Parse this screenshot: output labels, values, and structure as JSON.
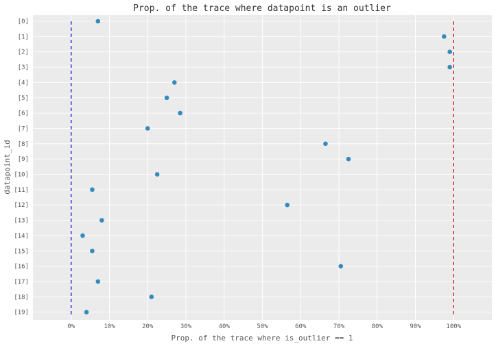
{
  "chart_data": {
    "type": "scatter",
    "title": "Prop. of the trace where datapoint is an outlier",
    "xlabel": "Prop. of the trace where is_outlier == 1",
    "ylabel": "datapoint_id",
    "xlim": [
      -0.1,
      1.1
    ],
    "grid": true,
    "x_ticks": [
      0,
      0.1,
      0.2,
      0.3,
      0.4,
      0.5,
      0.6,
      0.7,
      0.8,
      0.9,
      1.0
    ],
    "x_tick_labels": [
      "0%",
      "10%",
      "20%",
      "30%",
      "40%",
      "50%",
      "60%",
      "70%",
      "80%",
      "90%",
      "100%"
    ],
    "categories": [
      "[0]",
      "[1]",
      "[2]",
      "[3]",
      "[4]",
      "[5]",
      "[6]",
      "[7]",
      "[8]",
      "[9]",
      "[10]",
      "[11]",
      "[12]",
      "[13]",
      "[14]",
      "[15]",
      "[16]",
      "[17]",
      "[18]",
      "[19]"
    ],
    "values": [
      0.07,
      0.975,
      0.99,
      0.99,
      0.27,
      0.25,
      0.285,
      0.2,
      0.665,
      0.725,
      0.225,
      0.055,
      0.565,
      0.08,
      0.03,
      0.055,
      0.705,
      0.07,
      0.21,
      0.04
    ],
    "reference_lines": [
      {
        "x": 0,
        "color": "#0000cc",
        "style": "dashed"
      },
      {
        "x": 1,
        "color": "#cc0000",
        "style": "dashed"
      }
    ],
    "point_color": "#348abd",
    "background_color": "#ebebeb",
    "grid_color": "#ffffff"
  }
}
